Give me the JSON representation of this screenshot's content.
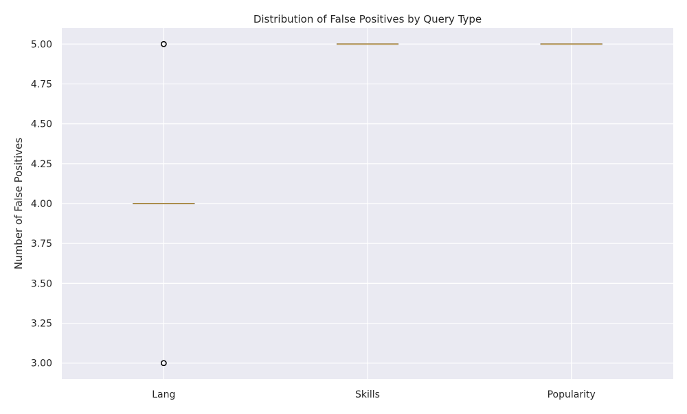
{
  "chart_data": {
    "type": "box",
    "title": "Distribution of False Positives by Query Type",
    "xlabel": "",
    "ylabel": "Number of False Positives",
    "categories": [
      "Lang",
      "Skills",
      "Popularity"
    ],
    "boxes": [
      {
        "category": "Lang",
        "min": 4.0,
        "q1": 4.0,
        "median": 4.0,
        "q3": 4.0,
        "max": 4.0,
        "outliers": [
          3.0,
          5.0
        ]
      },
      {
        "category": "Skills",
        "min": 5.0,
        "q1": 5.0,
        "median": 5.0,
        "q3": 5.0,
        "max": 5.0,
        "outliers": []
      },
      {
        "category": "Popularity",
        "min": 5.0,
        "q1": 5.0,
        "median": 5.0,
        "q3": 5.0,
        "max": 5.0,
        "outliers": []
      }
    ],
    "ylim": [
      2.9,
      5.1
    ],
    "yticks": [
      "3.00",
      "3.25",
      "3.50",
      "3.75",
      "4.00",
      "4.25",
      "4.50",
      "4.75",
      "5.00"
    ],
    "grid": true,
    "colors": {
      "background": "#eaeaf2",
      "grid": "#ffffff",
      "box_edge": "#555555",
      "median": "#c8a04a",
      "outlier_edge": "#000000"
    }
  }
}
